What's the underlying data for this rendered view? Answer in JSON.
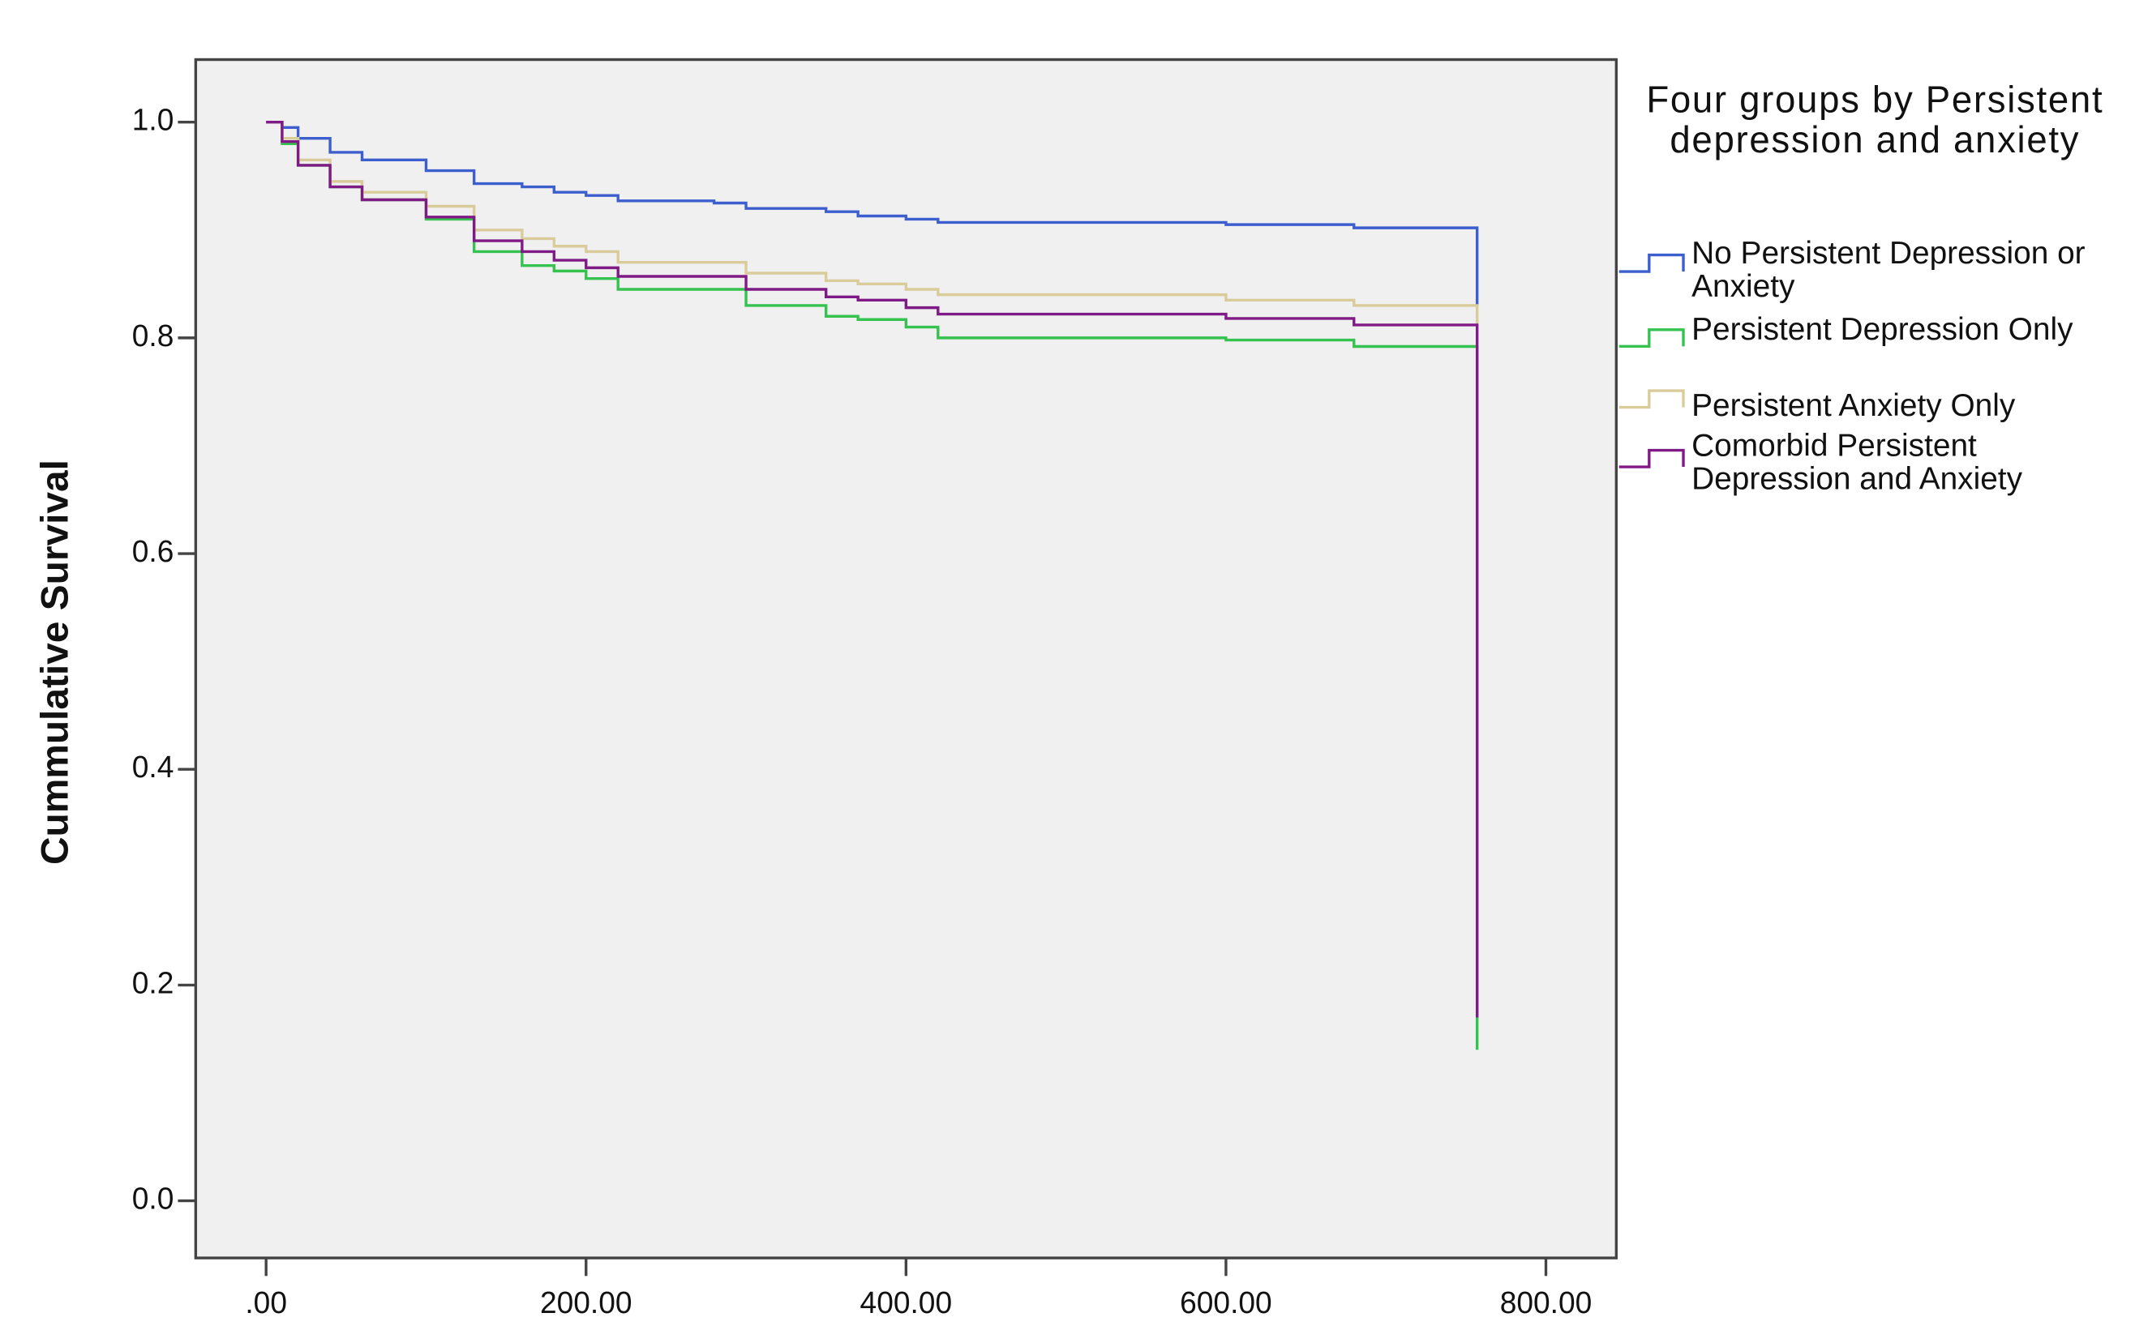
{
  "chart_data": {
    "type": "step",
    "y_label": "Cummulative Survival",
    "legend_title": "Four groups by Persistent depression and anxiety",
    "legend": "right",
    "x": [
      0,
      10,
      20,
      40,
      60,
      100,
      130,
      160,
      180,
      200,
      220,
      280,
      300,
      350,
      370,
      400,
      420,
      600,
      680,
      757,
      757
    ],
    "series": [
      {
        "name": "No Persistent Depression or Anxiety",
        "color": "#3c5fcd",
        "values": [
          1,
          0.995,
          0.985,
          0.972,
          0.965,
          0.955,
          0.943,
          0.94,
          0.935,
          0.932,
          0.927,
          0.925,
          0.92,
          0.917,
          0.913,
          0.91,
          0.907,
          0.905,
          0.902,
          0.902,
          0.83
        ]
      },
      {
        "name": "Persistent Depression Only",
        "color": "#35c24f",
        "values": [
          1,
          0.98,
          0.96,
          0.94,
          0.928,
          0.91,
          0.88,
          0.867,
          0.862,
          0.855,
          0.845,
          0.845,
          0.83,
          0.82,
          0.817,
          0.81,
          0.8,
          0.798,
          0.792,
          0.792,
          0.14
        ]
      },
      {
        "name": "Persistent Anxiety Only",
        "color": "#d9cc9a",
        "values": [
          1,
          0.985,
          0.965,
          0.945,
          0.935,
          0.922,
          0.9,
          0.892,
          0.885,
          0.88,
          0.87,
          0.87,
          0.86,
          0.853,
          0.85,
          0.845,
          0.84,
          0.835,
          0.83,
          0.83,
          0.81
        ]
      },
      {
        "name": "Comorbid Persistent Depression and Anxiety",
        "color": "#7f1a86",
        "values": [
          1,
          0.982,
          0.96,
          0.94,
          0.928,
          0.912,
          0.89,
          0.88,
          0.872,
          0.865,
          0.857,
          0.857,
          0.845,
          0.838,
          0.835,
          0.828,
          0.822,
          0.818,
          0.812,
          0.812,
          0.17
        ]
      }
    ],
    "xlim": [
      -44,
      844
    ],
    "ylim": [
      -0.053,
      1.058
    ],
    "xticks": [
      {
        "value": 0,
        "label": ".00"
      },
      {
        "value": 200,
        "label": "200.00"
      },
      {
        "value": 400,
        "label": "400.00"
      },
      {
        "value": 600,
        "label": "600.00"
      },
      {
        "value": 800,
        "label": "800.00"
      }
    ],
    "yticks": [
      {
        "value": 0,
        "label": "0.0"
      },
      {
        "value": 0.2,
        "label": "0.2"
      },
      {
        "value": 0.4,
        "label": "0.4"
      },
      {
        "value": 0.6,
        "label": "0.6"
      },
      {
        "value": 0.8,
        "label": "0.8"
      },
      {
        "value": 1,
        "label": "1.0"
      }
    ],
    "plot_background": "#f0f0f0"
  }
}
